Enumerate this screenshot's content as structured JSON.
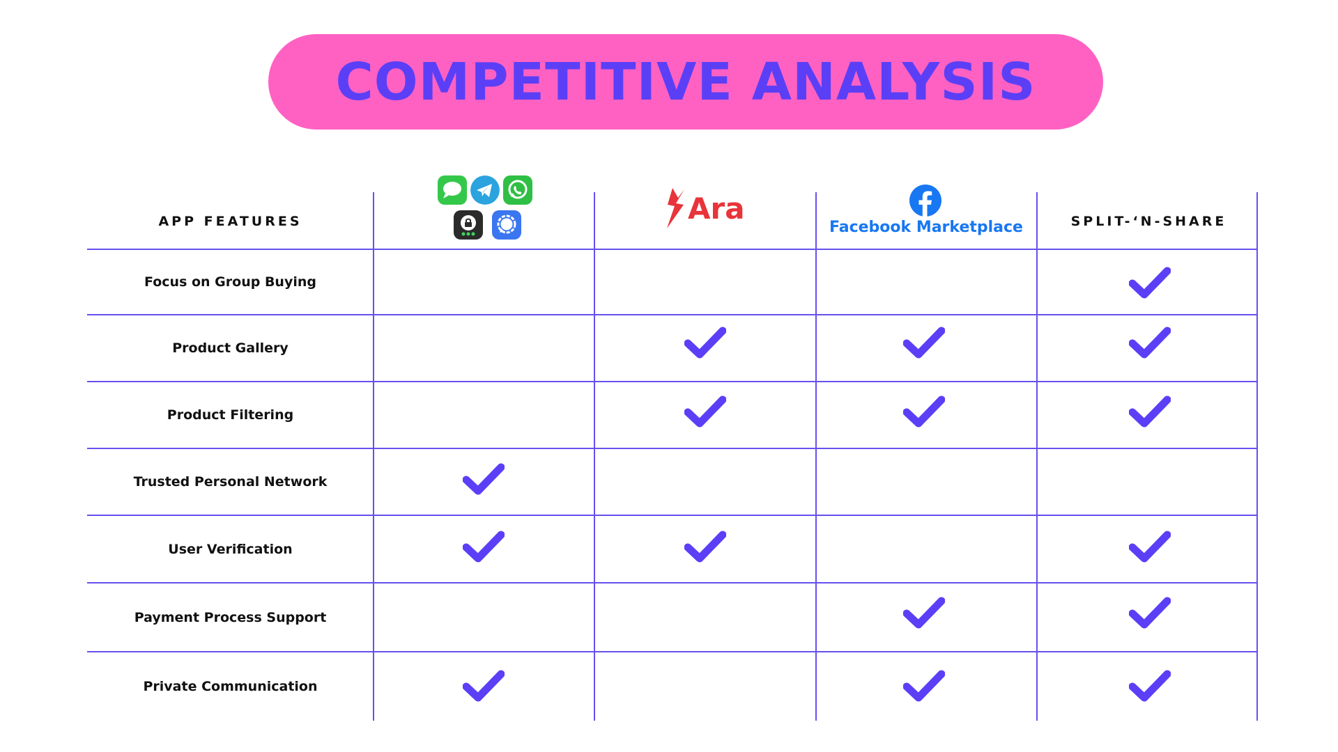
{
  "title": "COMPETITIVE ANALYSIS",
  "colors": {
    "accent": "#5b3ff6",
    "pill": "#ff61c3",
    "grid": "#6650ee",
    "ara": "#e8343a",
    "facebook": "#1877f2"
  },
  "header": {
    "features_label": "APP FEATURES",
    "messaging_icons": [
      "imessage-icon",
      "telegram-icon",
      "whatsapp-icon",
      "threema-icon",
      "signal-icon"
    ],
    "ara_label": "Ara",
    "facebook_label": "Facebook Marketplace",
    "split_label": "SPLIT-‘N-SHARE"
  },
  "features": [
    {
      "label": "Focus on Group Buying",
      "checks": [
        false,
        false,
        false,
        true
      ]
    },
    {
      "label": "Product Gallery",
      "checks": [
        false,
        true,
        true,
        true
      ]
    },
    {
      "label": "Product Filtering",
      "checks": [
        false,
        true,
        true,
        true
      ]
    },
    {
      "label": "Trusted Personal Network",
      "checks": [
        true,
        false,
        false,
        false
      ]
    },
    {
      "label": "User Verification",
      "checks": [
        true,
        true,
        false,
        true
      ]
    },
    {
      "label": "Payment Process Support",
      "checks": [
        false,
        false,
        true,
        true
      ]
    },
    {
      "label": "Private Communication",
      "checks": [
        true,
        false,
        true,
        true
      ]
    }
  ]
}
